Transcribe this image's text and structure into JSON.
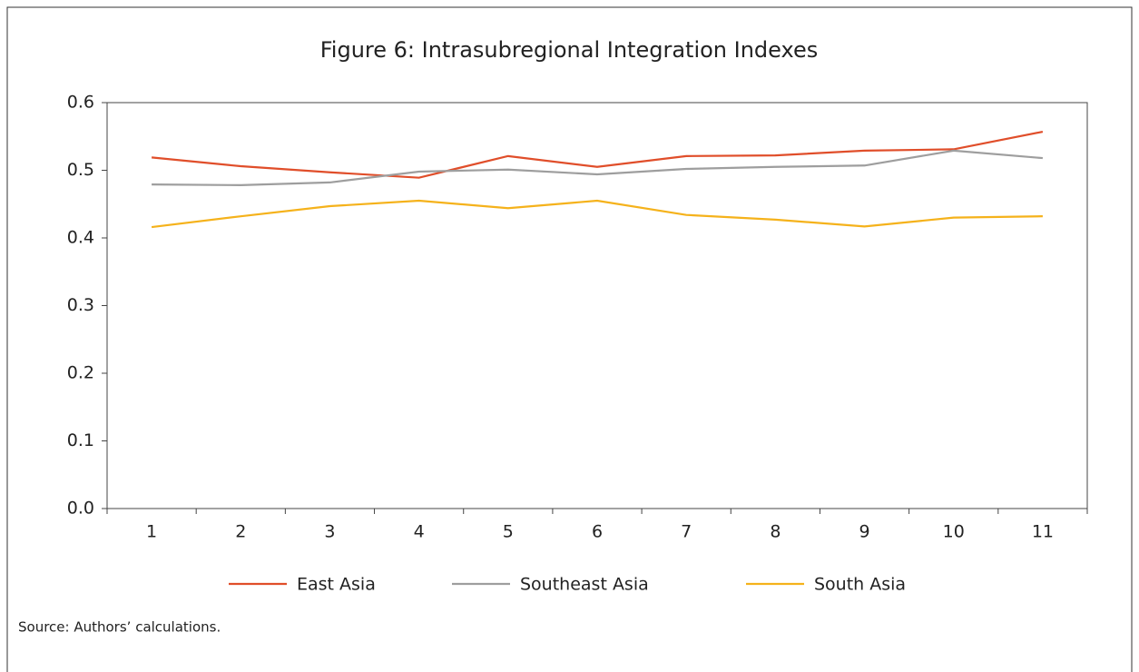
{
  "chart_data": {
    "type": "line",
    "title": "Figure 6: Intrasubregional Integration Indexes",
    "source": "Source: Authors’ calculations.",
    "categories": [
      "1",
      "2",
      "3",
      "4",
      "5",
      "6",
      "7",
      "8",
      "9",
      "10",
      "11"
    ],
    "series": [
      {
        "name": "East Asia",
        "color": "#e04e2a",
        "values": [
          0.519,
          0.506,
          0.497,
          0.489,
          0.521,
          0.505,
          0.521,
          0.522,
          0.529,
          0.531,
          0.557
        ]
      },
      {
        "name": "Southeast Asia",
        "color": "#9e9e9e",
        "values": [
          0.479,
          0.478,
          0.482,
          0.498,
          0.501,
          0.494,
          0.502,
          0.505,
          0.507,
          0.529,
          0.518
        ]
      },
      {
        "name": "South Asia",
        "color": "#f5b21b",
        "values": [
          0.416,
          0.432,
          0.447,
          0.455,
          0.444,
          0.455,
          0.434,
          0.427,
          0.417,
          0.43,
          0.432
        ]
      }
    ],
    "ylim": [
      0,
      0.6
    ],
    "yticks": [
      {
        "value": 0,
        "label": "0.0"
      },
      0.1,
      0.2,
      0.3,
      0.4,
      0.5,
      0.6
    ],
    "legend": "bottom"
  }
}
